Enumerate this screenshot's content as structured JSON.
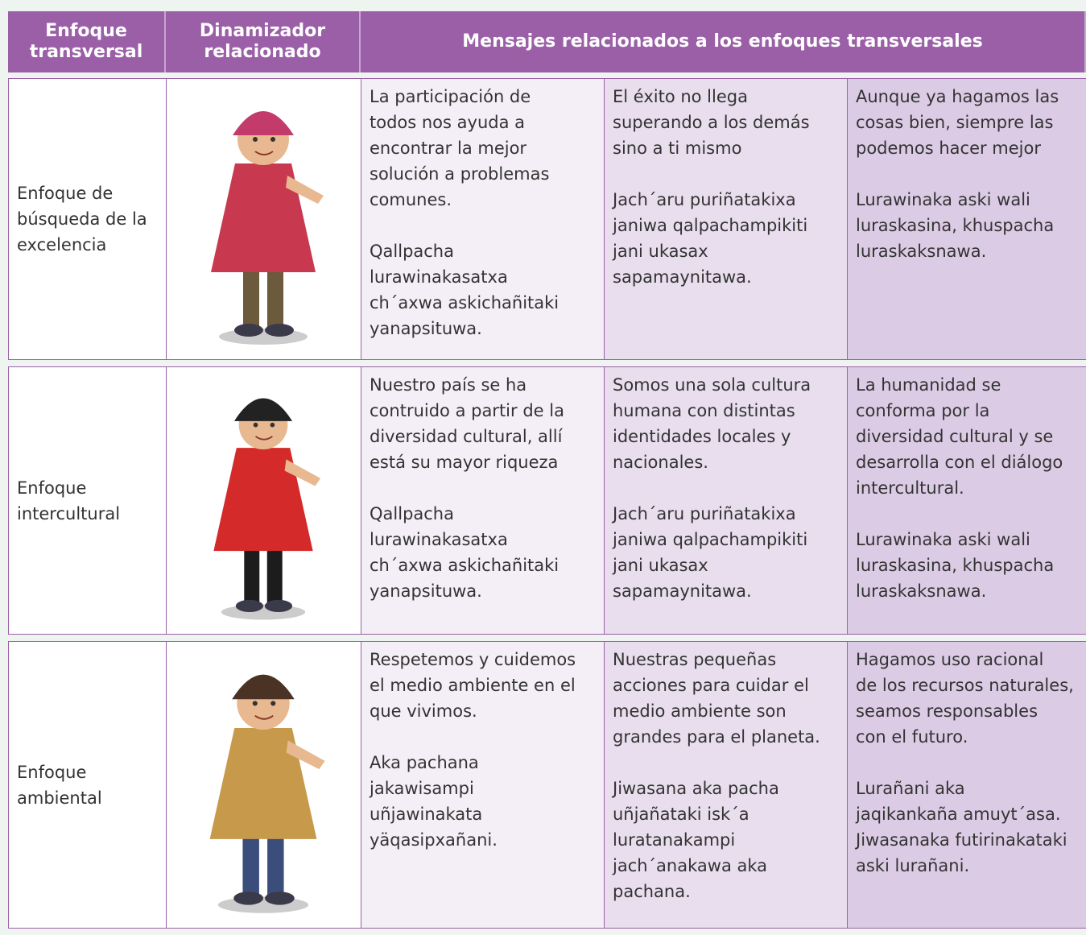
{
  "header": {
    "columns": [
      [
        "Enfoque",
        "transversal"
      ],
      [
        "Dinamizador",
        "relacionado"
      ],
      [
        "Mensajes relacionados a los enfoques transversales"
      ]
    ]
  },
  "table": {
    "rows": [
      {
        "approach": [
          "Enfoque de",
          "búsqueda de la",
          "excelencia"
        ],
        "messages": [
          {
            "es": [
              "La participación de",
              "todos nos ayuda a",
              "encontrar la mejor",
              "solución a problemas",
              "comunes."
            ],
            "ay": [
              "Qallpacha",
              "lurawinakasatxa",
              "ch´axwa askichañitaki",
              "yanapsituwa."
            ]
          },
          {
            "es": [
              "El éxito no llega",
              "superando a los demás",
              "sino a ti mismo"
            ],
            "ay": [
              "Jach´aru puriñatakixa",
              "janiwa qalpachampikiti",
              "jani ukasax",
              "sapamaynitawa."
            ]
          },
          {
            "es": [
              "Aunque ya hagamos las",
              "cosas bien, siempre las",
              "podemos hacer mejor"
            ],
            "ay": [
              "Lurawinaka aski wali",
              "luraskasina, khuspacha",
              "luraskaksnawa."
            ]
          }
        ]
      },
      {
        "approach": [
          "Enfoque",
          "intercultural"
        ],
        "messages": [
          {
            "es": [
              "Nuestro país se ha",
              "contruido a partir de la",
              "diversidad cultural, allí",
              "está su mayor riqueza"
            ],
            "ay": [
              "Qallpacha",
              "lurawinakasatxa",
              "ch´axwa askichañitaki",
              "yanapsituwa."
            ]
          },
          {
            "es": [
              "Somos una sola cultura",
              "humana con distintas",
              "identidades locales y",
              "nacionales."
            ],
            "ay": [
              "Jach´aru puriñatakixa",
              "janiwa qalpachampikiti",
              "jani ukasax",
              "sapamaynitawa."
            ]
          },
          {
            "es": [
              "La humanidad se",
              "conforma por la",
              "diversidad cultural y se",
              "desarrolla con el diálogo",
              "intercultural."
            ],
            "ay": [
              "Lurawinaka aski wali",
              "luraskasina, khuspacha",
              "luraskaksnawa."
            ]
          }
        ]
      },
      {
        "approach": [
          "Enfoque",
          "ambiental"
        ],
        "messages": [
          {
            "es": [
              "Respetemos y cuidemos",
              "el medio ambiente en el",
              "que vivimos."
            ],
            "ay": [
              "Aka pachana",
              "jakawisampi",
              "uñjawinakata",
              "yäqasipxañani."
            ]
          },
          {
            "es": [
              "Nuestras pequeñas",
              "acciones para cuidar el",
              "medio ambiente son",
              "grandes para el planeta."
            ],
            "ay": [
              "Jiwasana aka pacha",
              "uñjañataki  isk´a",
              "luratanakampi",
              "jach´anakawa aka",
              "pachana."
            ]
          },
          {
            "es": [
              "Hagamos uso racional",
              "de los recursos naturales,",
              "seamos responsables",
              "con el futuro."
            ],
            "ay": [
              "Lurañani aka",
              "jaqikankaña  amuyt´asa.",
              "Jiwasanaka futirinakataki",
              "aski lurañani."
            ]
          }
        ]
      }
    ]
  }
}
